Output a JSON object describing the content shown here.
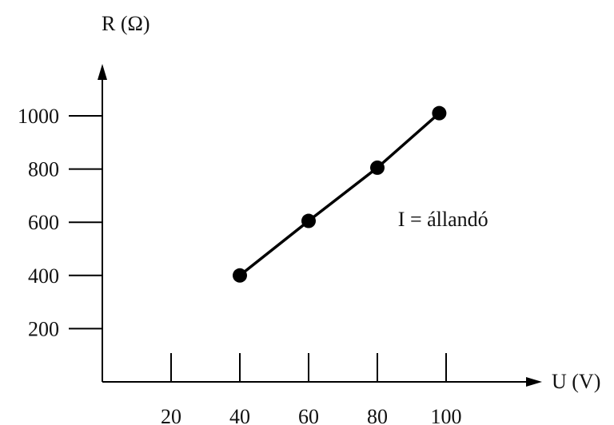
{
  "chart_data": {
    "type": "line",
    "title": "",
    "xlabel": "U (V)",
    "ylabel": "R (Ω)",
    "x_ticks": [
      20,
      40,
      60,
      80,
      100
    ],
    "y_ticks": [
      200,
      400,
      600,
      800,
      1000
    ],
    "xlim": [
      0,
      110
    ],
    "ylim": [
      0,
      1100
    ],
    "grid": false,
    "series": [
      {
        "x": [
          40,
          60,
          80,
          98
        ],
        "y": [
          400,
          605,
          805,
          1010
        ],
        "marker": "filled-circle",
        "line": "solid",
        "color": "#000000"
      }
    ],
    "annotations": [
      {
        "text": "I = állandó",
        "x": 86,
        "y": 610
      }
    ]
  }
}
